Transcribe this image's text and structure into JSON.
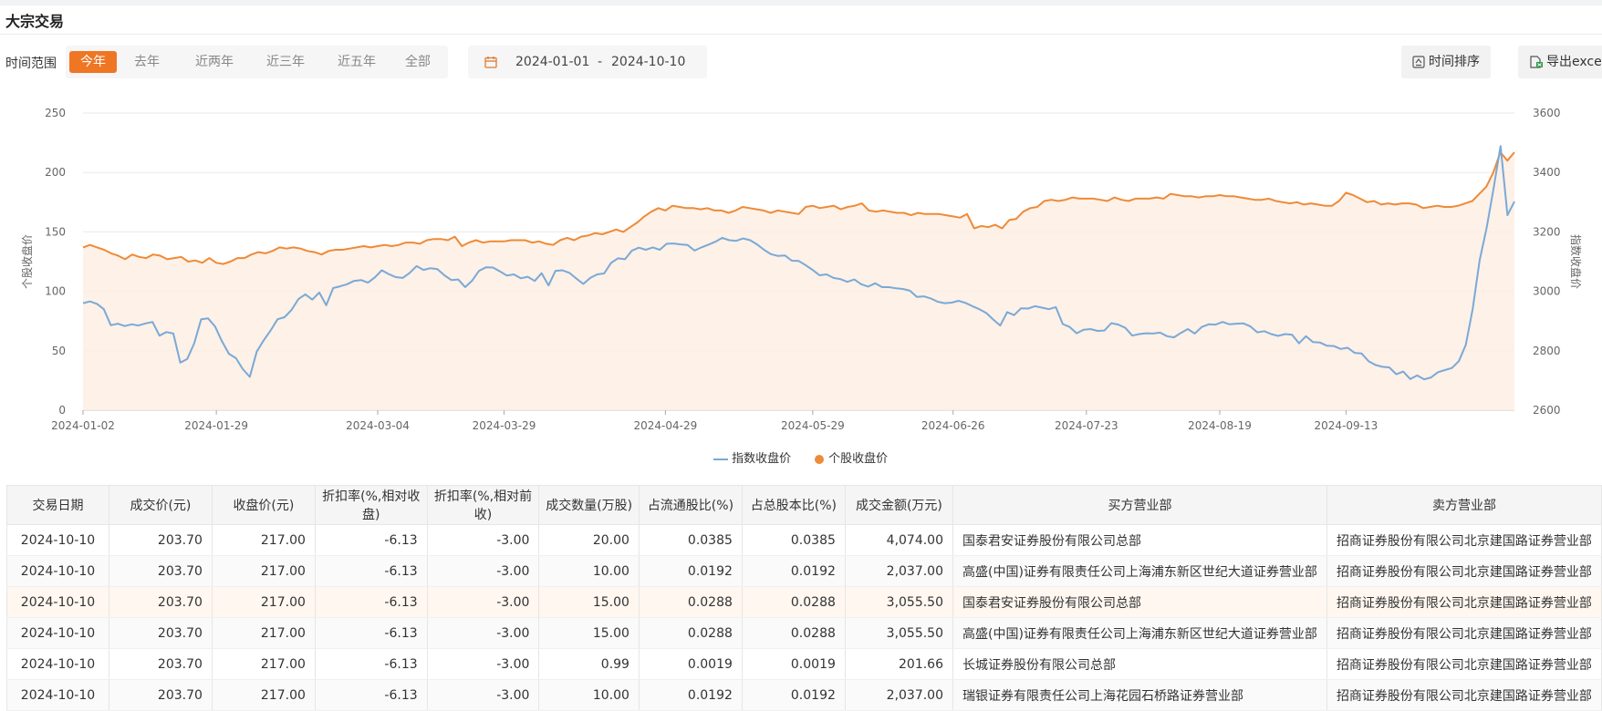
{
  "header": {
    "title": "大宗交易"
  },
  "filter": {
    "label": "时间范围",
    "ranges": [
      "今年",
      "去年",
      "近两年",
      "近三年",
      "近五年",
      "全部"
    ],
    "active_index": 0,
    "start_date": "2024-01-01",
    "separator": "-",
    "end_date": "2024-10-10",
    "accent_color": "#ef7623"
  },
  "actions": {
    "sort_label": "时间排序",
    "export_label": "导出excel"
  },
  "legend": {
    "index_label": "指数收盘价",
    "stock_label": "个股收盘价"
  },
  "chart_data": {
    "type": "line",
    "left_axis": {
      "label": "个股收盘价",
      "ticks": [
        0,
        50,
        100,
        150,
        200,
        250
      ],
      "range": [
        0,
        250
      ]
    },
    "right_axis": {
      "label": "指数收盘价",
      "ticks": [
        2600,
        2800,
        3000,
        3200,
        3400,
        3600
      ],
      "range": [
        2600,
        3600
      ]
    },
    "x_tick_labels": [
      "2024-01-02",
      "2024-01-29",
      "2024-03-04",
      "2024-03-29",
      "2024-04-29",
      "2024-05-29",
      "2024-06-26",
      "2024-07-23",
      "2024-08-19",
      "2024-09-13"
    ],
    "grid": true,
    "series": [
      {
        "name": "个股收盘价",
        "axis": "left",
        "color": "#ef8a36",
        "area": true,
        "values": [
          137,
          139,
          137,
          135,
          132,
          130,
          127,
          131,
          129,
          128,
          131,
          130,
          127,
          128,
          129,
          125,
          126,
          124,
          128,
          124,
          123,
          125,
          128,
          128,
          131,
          133,
          132,
          134,
          137,
          136,
          137,
          136,
          134,
          133,
          131,
          134,
          135,
          135,
          136,
          137,
          138,
          137,
          138,
          139,
          138,
          139,
          141,
          141,
          140,
          143,
          144,
          144,
          143,
          146,
          138,
          141,
          143,
          141,
          142,
          142,
          142,
          143,
          143,
          143,
          141,
          142,
          140,
          139,
          143,
          145,
          143,
          146,
          147,
          149,
          148,
          150,
          152,
          150,
          154,
          158,
          163,
          167,
          170,
          168,
          172,
          171,
          170,
          170,
          169,
          170,
          168,
          168,
          166,
          168,
          171,
          170,
          169,
          168,
          166,
          168,
          167,
          166,
          165,
          171,
          172,
          170,
          171,
          172,
          169,
          171,
          172,
          174,
          168,
          167,
          168,
          167,
          166,
          166,
          164,
          166,
          165,
          165,
          165,
          164,
          163,
          162,
          165,
          153,
          155,
          154,
          156,
          153,
          160,
          161,
          167,
          170,
          171,
          176,
          177,
          176,
          177,
          179,
          178,
          178,
          178,
          177,
          176,
          179,
          177,
          176,
          178,
          178,
          178,
          179,
          178,
          182,
          181,
          180,
          180,
          179,
          180,
          180,
          181,
          180,
          180,
          179,
          178,
          177,
          177,
          178,
          176,
          175,
          174,
          175,
          173,
          174,
          173,
          172,
          172,
          176,
          183,
          181,
          178,
          175,
          176,
          173,
          174,
          173,
          174,
          174,
          173,
          170,
          171,
          172,
          171,
          171,
          172,
          174,
          176,
          182,
          188,
          200,
          217,
          210,
          217
        ]
      },
      {
        "name": "指数收盘价",
        "axis": "right",
        "color": "#7aa9d6",
        "area": false,
        "values": [
          2960,
          2966,
          2958,
          2940,
          2886,
          2891,
          2883,
          2889,
          2885,
          2892,
          2897,
          2851,
          2863,
          2858,
          2760,
          2772,
          2825,
          2906,
          2909,
          2882,
          2832,
          2790,
          2775,
          2738,
          2712,
          2797,
          2835,
          2868,
          2906,
          2913,
          2937,
          2974,
          2990,
          2972,
          2996,
          2953,
          3011,
          3017,
          3024,
          3035,
          3038,
          3029,
          3047,
          3071,
          3058,
          3048,
          3045,
          3062,
          3085,
          3072,
          3078,
          3075,
          3054,
          3038,
          3040,
          3014,
          3036,
          3069,
          3081,
          3080,
          3067,
          3053,
          3057,
          3044,
          3049,
          3035,
          3061,
          3020,
          3069,
          3071,
          3062,
          3043,
          3025,
          3045,
          3057,
          3060,
          3096,
          3111,
          3108,
          3137,
          3147,
          3140,
          3148,
          3140,
          3160,
          3161,
          3158,
          3156,
          3137,
          3148,
          3157,
          3167,
          3180,
          3172,
          3170,
          3178,
          3172,
          3158,
          3140,
          3125,
          3119,
          3121,
          3103,
          3102,
          3088,
          3072,
          3054,
          3057,
          3045,
          3041,
          3032,
          3040,
          3024,
          3016,
          3027,
          3014,
          3014,
          3010,
          3008,
          3002,
          2981,
          2983,
          2976,
          2965,
          2960,
          2962,
          2968,
          2961,
          2950,
          2940,
          2927,
          2905,
          2885,
          2930,
          2920,
          2943,
          2942,
          2950,
          2945,
          2940,
          2947,
          2890,
          2880,
          2859,
          2871,
          2873,
          2867,
          2868,
          2893,
          2888,
          2877,
          2851,
          2856,
          2859,
          2858,
          2861,
          2849,
          2845,
          2860,
          2873,
          2858,
          2880,
          2889,
          2888,
          2897,
          2889,
          2891,
          2892,
          2882,
          2862,
          2866,
          2856,
          2850,
          2856,
          2854,
          2825,
          2849,
          2829,
          2828,
          2817,
          2816,
          2806,
          2810,
          2793,
          2791,
          2765,
          2752,
          2746,
          2744,
          2721,
          2730,
          2705,
          2717,
          2704,
          2710,
          2728,
          2735,
          2742,
          2765,
          2820,
          2941,
          3105,
          3213,
          3347,
          3489,
          3256,
          3302
        ]
      }
    ]
  },
  "table": {
    "columns": [
      "交易日期",
      "成交价(元)",
      "收盘价(元)",
      "折扣率(%,相对收盘)",
      "折扣率(%,相对前收)",
      "成交数量(万股)",
      "占流通股比(%)",
      "占总股本比(%)",
      "成交金额(万元)",
      "买方营业部",
      "卖方营业部"
    ],
    "rows": [
      [
        "2024-10-10",
        "203.70",
        "217.00",
        "-6.13",
        "-3.00",
        "20.00",
        "0.0385",
        "0.0385",
        "4,074.00",
        "国泰君安证券股份有限公司总部",
        "招商证券股份有限公司北京建国路证券营业部"
      ],
      [
        "2024-10-10",
        "203.70",
        "217.00",
        "-6.13",
        "-3.00",
        "10.00",
        "0.0192",
        "0.0192",
        "2,037.00",
        "高盛(中国)证券有限责任公司上海浦东新区世纪大道证券营业部",
        "招商证券股份有限公司北京建国路证券营业部"
      ],
      [
        "2024-10-10",
        "203.70",
        "217.00",
        "-6.13",
        "-3.00",
        "15.00",
        "0.0288",
        "0.0288",
        "3,055.50",
        "国泰君安证券股份有限公司总部",
        "招商证券股份有限公司北京建国路证券营业部"
      ],
      [
        "2024-10-10",
        "203.70",
        "217.00",
        "-6.13",
        "-3.00",
        "15.00",
        "0.0288",
        "0.0288",
        "3,055.50",
        "高盛(中国)证券有限责任公司上海浦东新区世纪大道证券营业部",
        "招商证券股份有限公司北京建国路证券营业部"
      ],
      [
        "2024-10-10",
        "203.70",
        "217.00",
        "-6.13",
        "-3.00",
        "0.99",
        "0.0019",
        "0.0019",
        "201.66",
        "长城证券股份有限公司总部",
        "招商证券股份有限公司北京建国路证券营业部"
      ],
      [
        "2024-10-10",
        "203.70",
        "217.00",
        "-6.13",
        "-3.00",
        "10.00",
        "0.0192",
        "0.0192",
        "2,037.00",
        "瑞银证券有限责任公司上海花园石桥路证券营业部",
        "招商证券股份有限公司北京建国路证券营业部"
      ]
    ]
  }
}
